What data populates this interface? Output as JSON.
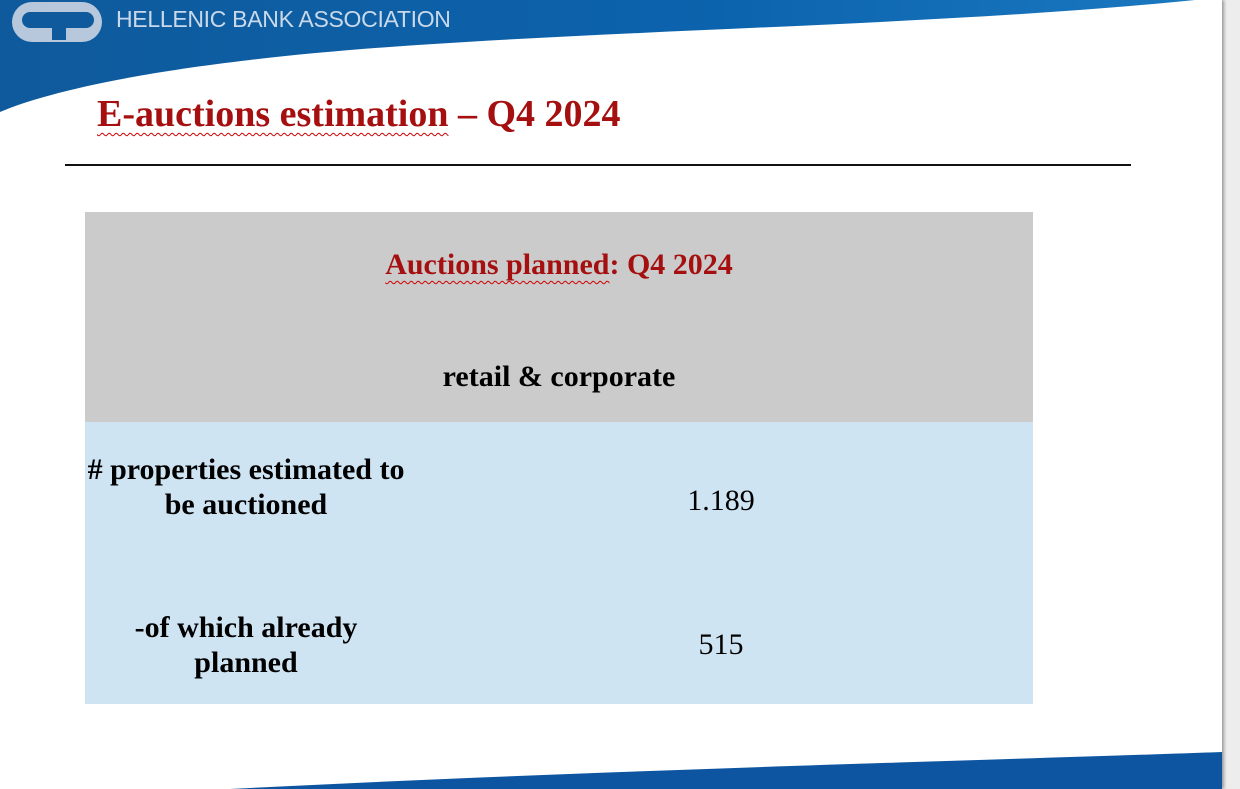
{
  "header": {
    "organization": "HELLENIC BANK ASSOCIATION",
    "logo_icon": "hba-logo-icon",
    "brand_color": "#0d5fa6"
  },
  "slide": {
    "title_part1": "E-auctions estimation",
    "title_part2": " – Q4 2024",
    "title_color": "#a50f0f"
  },
  "table": {
    "header_title_part1": "Auctions planned",
    "header_title_part2": ": Q4 2024",
    "header_subtitle": "retail & corporate",
    "rows": [
      {
        "label": "# properties estimated to be auctioned",
        "value": "1.189"
      },
      {
        "label": "-of which already planned",
        "value": "515"
      }
    ],
    "header_bg": "#cbcbcb",
    "body_bg": "#cfe4f3"
  }
}
